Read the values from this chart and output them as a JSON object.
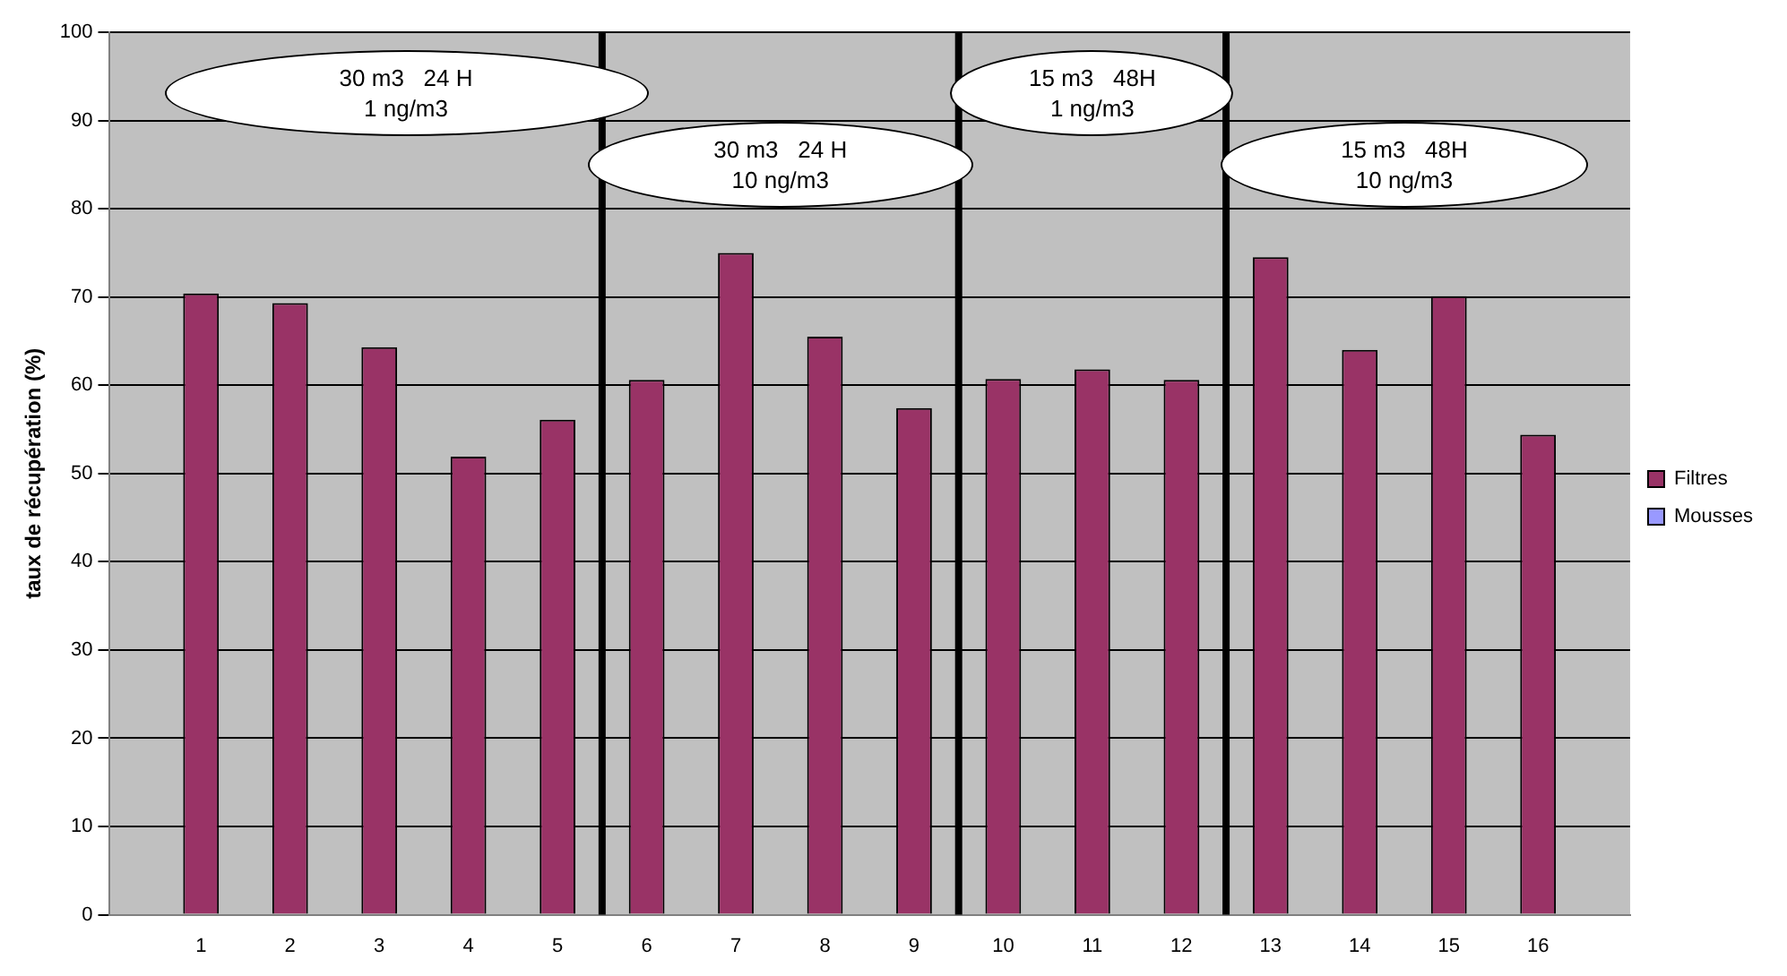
{
  "chart_data": {
    "type": "bar",
    "ylabel": "taux de récupération (%)",
    "x": [
      1,
      2,
      3,
      4,
      5,
      6,
      7,
      8,
      9,
      10,
      11,
      12,
      13,
      14,
      15,
      16
    ],
    "xlim": [
      0.5,
      16.5
    ],
    "xticks": [
      1,
      2,
      3,
      4,
      5,
      6,
      7,
      8,
      9,
      10,
      11,
      12,
      13,
      14,
      15,
      16
    ],
    "ylim": [
      0,
      100
    ],
    "yticks": [
      0,
      10,
      20,
      30,
      40,
      50,
      60,
      70,
      80,
      90,
      100
    ],
    "series": [
      {
        "name": "Filtres",
        "color": "#993366",
        "values": [
          70.4,
          69.3,
          64.3,
          51.9,
          56.1,
          60.6,
          75.0,
          65.5,
          57.4,
          60.7,
          61.8,
          60.6,
          74.5,
          64.0,
          70.1,
          54.4
        ]
      },
      {
        "name": "Mousses",
        "color": "#9999ff",
        "values": [
          null,
          null,
          null,
          null,
          null,
          null,
          null,
          null,
          null,
          null,
          null,
          null,
          null,
          null,
          null,
          null
        ]
      }
    ],
    "ref_lines": [
      {
        "axis": "x",
        "value": 5.5,
        "color": "#000000"
      },
      {
        "axis": "x",
        "value": 9.5,
        "color": "#000000"
      },
      {
        "axis": "x",
        "value": 12.5,
        "color": "#000000"
      }
    ],
    "annotations": [
      "30 m3   24 H\n1 ng/m3",
      "30 m3   24 H\n10 ng/m3",
      "15 m3   48H\n1 ng/m3",
      "15 m3   48H\n10 ng/m3"
    ],
    "grid": "y",
    "legend": "right"
  }
}
